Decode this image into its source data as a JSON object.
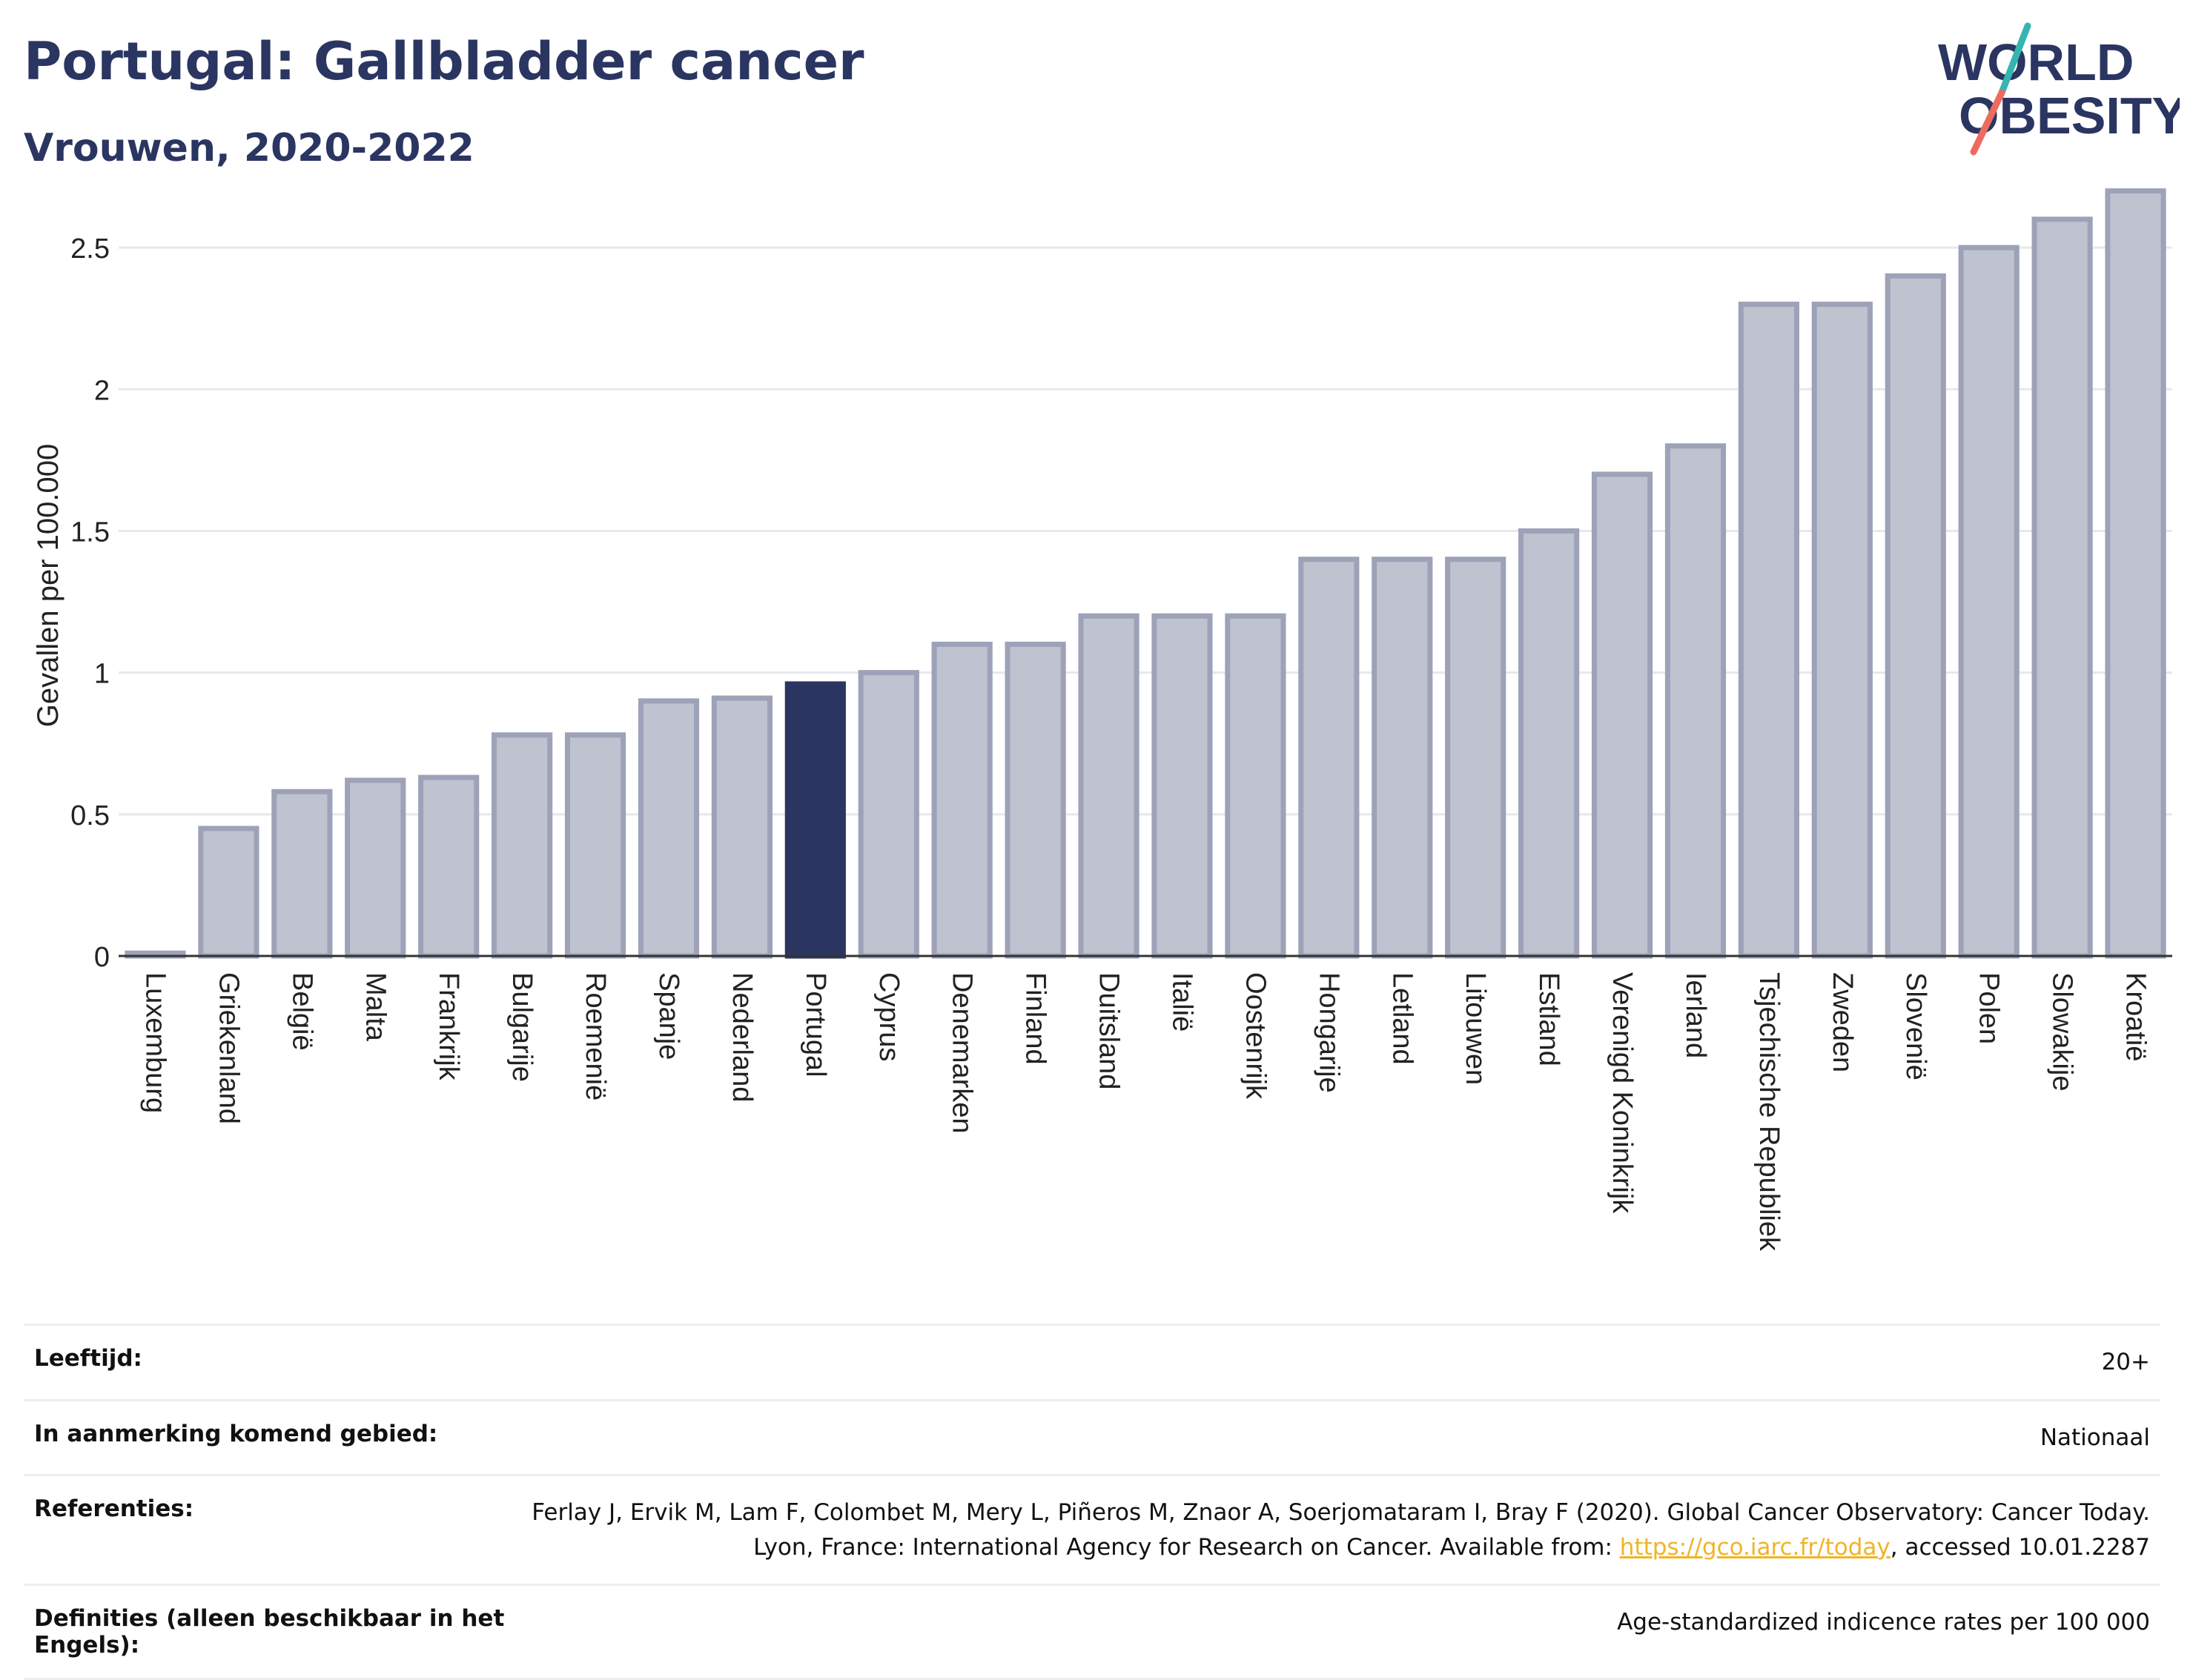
{
  "header": {
    "title": "Portugal: Gallbladder cancer",
    "subtitle": "Vrouwen, 2020-2022",
    "logo_line1": "WORLD",
    "logo_line2": "OBESITY"
  },
  "colors": {
    "bar_default": "#bfc2cf",
    "bar_border": "#9da2b8",
    "bar_highlight": "#2b3561",
    "axis": "#333333",
    "grid": "#e6e8ee",
    "logo_teal": "#35b5b0",
    "logo_coral": "#ec6b5e"
  },
  "chart_data": {
    "type": "bar",
    "title": "",
    "xlabel": "",
    "ylabel": "Gevallen per 100.000",
    "ylim": [
      0,
      2.72
    ],
    "yticks": [
      0,
      0.5,
      1,
      1.5,
      2,
      2.5
    ],
    "ytick_labels": [
      "0",
      "0.5",
      "1",
      "1.5",
      "2",
      "2.5"
    ],
    "grid": true,
    "highlight": "Portugal",
    "categories": [
      "Luxemburg",
      "Griekenland",
      "België",
      "Malta",
      "Frankrijk",
      "Bulgarije",
      "Roemenië",
      "Spanje",
      "Nederland",
      "Portugal",
      "Cyprus",
      "Denemarken",
      "Finland",
      "Duitsland",
      "Italië",
      "Oostenrijk",
      "Hongarije",
      "Letland",
      "Litouwen",
      "Estland",
      "Verenigd Koninkrijk",
      "Ierland",
      "Tsjechische Republiek",
      "Zweden",
      "Slovenië",
      "Polen",
      "Slowakije",
      "Kroatië"
    ],
    "values": [
      0.01,
      0.45,
      0.58,
      0.62,
      0.63,
      0.78,
      0.78,
      0.9,
      0.91,
      0.96,
      1.0,
      1.1,
      1.1,
      1.2,
      1.2,
      1.2,
      1.4,
      1.4,
      1.4,
      1.5,
      1.7,
      1.8,
      2.3,
      2.3,
      2.4,
      2.5,
      2.6,
      2.7
    ]
  },
  "meta": {
    "rows": [
      {
        "key": "Leeftijd:",
        "value": "20+"
      },
      {
        "key": "In aanmerking komend gebied:",
        "value": "Nationaal"
      }
    ],
    "reference": {
      "key": "Referenties:",
      "text_before": "Ferlay J, Ervik M, Lam F, Colombet M, Mery L, Piñeros M, Znaor A, Soerjomataram I, Bray F (2020). Global Cancer Observatory: Cancer Today. Lyon, France: International Agency for Research on Cancer. Available from: ",
      "link": "https://gco.iarc.fr/today",
      "text_after": ", accessed 10.01.2287"
    },
    "definition": {
      "key": "Definities (alleen beschikbaar in het Engels):",
      "value": "Age-standardized indicence rates per 100 000"
    }
  }
}
